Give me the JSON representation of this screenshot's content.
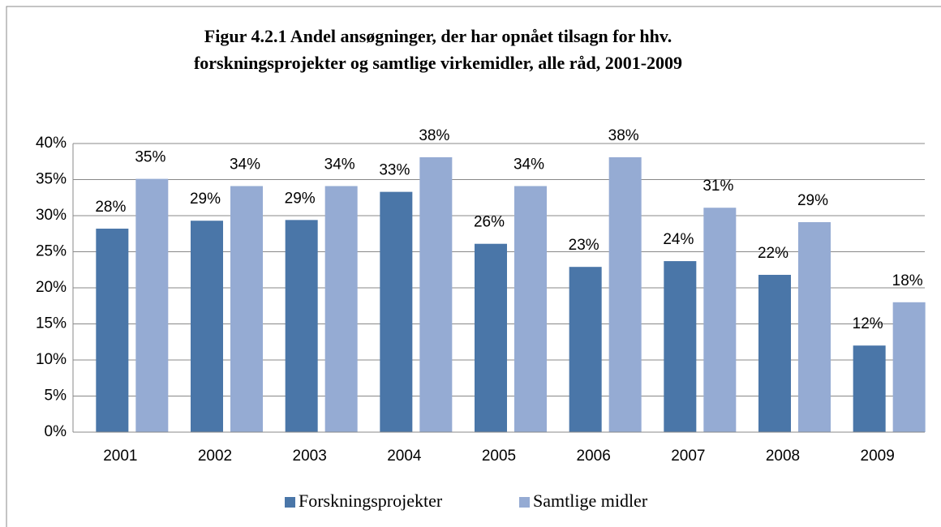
{
  "chart_data": {
    "type": "bar",
    "title": [
      "Figur 4.2.1 Andel ansøgninger, der har opnået tilsagn for hhv.",
      "forskningsprojekter og samtlige virkemidler, alle råd, 2001-2009"
    ],
    "categories": [
      "2001",
      "2002",
      "2003",
      "2004",
      "2005",
      "2006",
      "2007",
      "2008",
      "2009"
    ],
    "series": [
      {
        "name": "Forskningsprojekter",
        "color": "#4a76a8",
        "values": [
          28.2,
          29.3,
          29.4,
          33.3,
          26.1,
          22.9,
          23.7,
          21.8,
          12.0
        ],
        "value_labels": [
          "28%",
          "29%",
          "29%",
          "33%",
          "26%",
          "23%",
          "24%",
          "22%",
          "12%"
        ]
      },
      {
        "name": "Samtlige midler",
        "color": "#95abd3",
        "values": [
          35.1,
          34.1,
          34.1,
          38.1,
          34.1,
          38.1,
          31.1,
          29.1,
          18.0
        ],
        "value_labels": [
          "35%",
          "34%",
          "34%",
          "38%",
          "34%",
          "38%",
          "31%",
          "29%",
          "18%"
        ]
      }
    ],
    "ylim": [
      0,
      40
    ],
    "yticks": [
      {
        "value": 0,
        "label": "0%"
      },
      {
        "value": 5,
        "label": "5%"
      },
      {
        "value": 10,
        "label": "10%"
      },
      {
        "value": 15,
        "label": "15%"
      },
      {
        "value": 20,
        "label": "20%"
      },
      {
        "value": 25,
        "label": "25%"
      },
      {
        "value": 30,
        "label": "30%"
      },
      {
        "value": 35,
        "label": "35%"
      },
      {
        "value": 40,
        "label": "40%"
      }
    ],
    "grid": true,
    "legend": "bottom"
  }
}
